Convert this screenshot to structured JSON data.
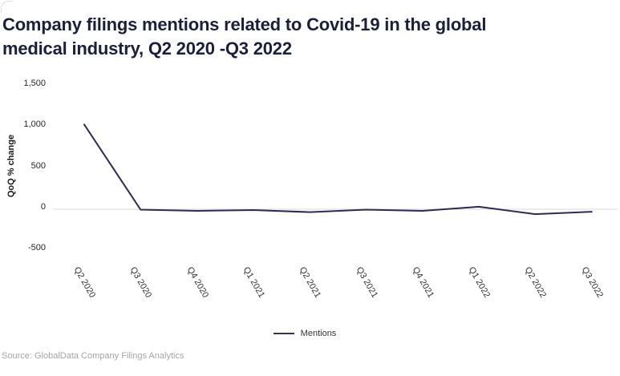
{
  "header": {
    "title_lines": [
      "Company filings mentions related to Covid-19 in the global",
      "medical industry, Q2 2020 -Q3 2022"
    ]
  },
  "footer": {
    "source": "Source: GlobalData Company Filings Analytics"
  },
  "legend": {
    "items": [
      {
        "label": "Mentions",
        "color": "#34315e"
      }
    ]
  },
  "chart_data": {
    "type": "line",
    "title": "Company filings mentions related to Covid-19 in the global medical industry, Q2 2020 -Q3 2022",
    "categories": [
      "Q2 2020",
      "Q3 2020",
      "Q4 2020",
      "Q1 2021",
      "Q2 2021",
      "Q3 2021",
      "Q4 2021",
      "Q1 2022",
      "Q2 2022",
      "Q3 2022"
    ],
    "series": [
      {
        "name": "Mentions",
        "color": "#2d2a58",
        "values": [
          1030,
          -5,
          -20,
          -10,
          -35,
          -5,
          -20,
          30,
          -60,
          -30
        ]
      }
    ],
    "xlabel": "",
    "ylabel": "QoQ % change",
    "ylim": [
      -500,
      1500
    ],
    "yticks": [
      {
        "label": "1,500",
        "value": 1500
      },
      {
        "label": "1,000",
        "value": 1000
      },
      {
        "label": "500",
        "value": 500
      },
      {
        "label": "0",
        "value": 0
      },
      {
        "label": "-500",
        "value": -500
      }
    ],
    "grid": "zero-line-only",
    "gridline_color": "#d9d9d9",
    "legend_position": "bottom"
  }
}
